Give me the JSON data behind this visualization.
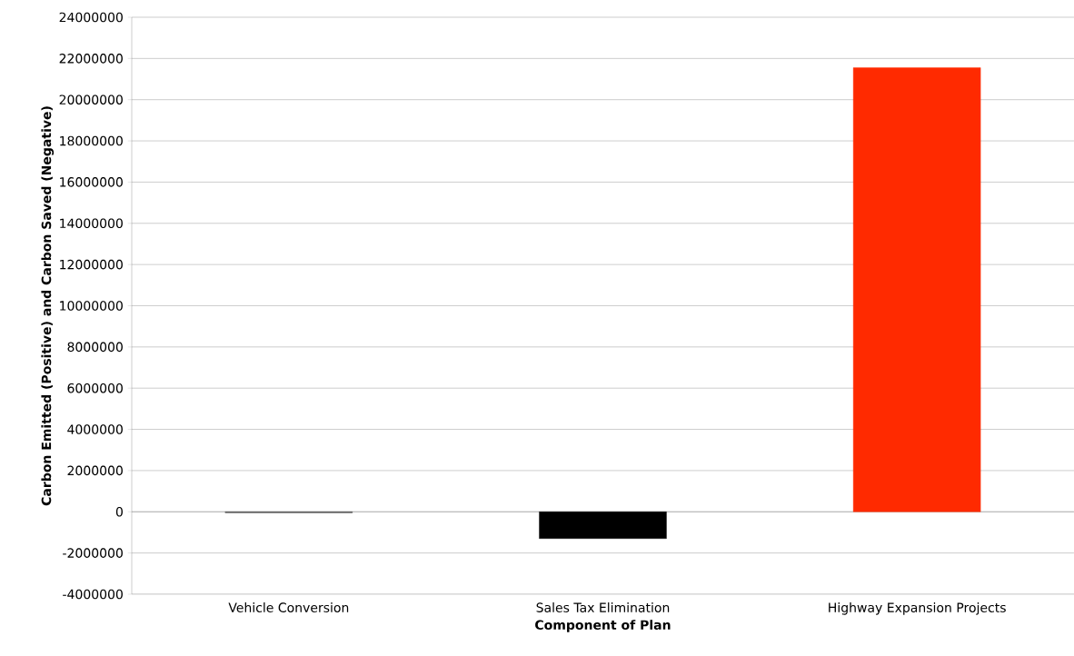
{
  "chart_data": {
    "type": "bar",
    "xlabel": "Component of Plan",
    "ylabel": "Carbon Emitted (Positive) and Carbon Saved (Negative)",
    "categories": [
      "Vehicle Conversion",
      "Sales Tax Elimination",
      "Highway Expansion Projects"
    ],
    "values": [
      -50000,
      -1300000,
      21550000
    ],
    "colors": [
      "#555555",
      "#000000",
      "#ff2a00"
    ],
    "ylim": [
      -4000000,
      24000000
    ],
    "yticks": [
      -4000000,
      -2000000,
      0,
      2000000,
      4000000,
      6000000,
      8000000,
      10000000,
      12000000,
      14000000,
      16000000,
      18000000,
      20000000,
      22000000,
      24000000
    ],
    "grid": "y"
  }
}
